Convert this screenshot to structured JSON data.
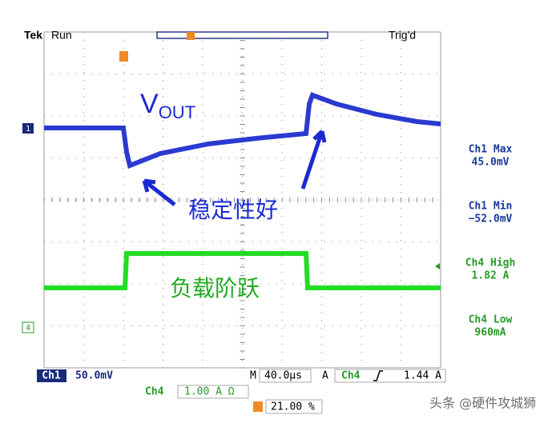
{
  "header": {
    "brand": "Tek",
    "status": "Run",
    "trigger_status": "Trig'd"
  },
  "channel_markers": {
    "ch1": "1",
    "ch4": "4"
  },
  "annotations": {
    "vout_main": "V",
    "vout_sub": "OUT",
    "stability": "稳定性好",
    "load_step": "负载阶跃"
  },
  "readouts": [
    {
      "label": "Ch1 Max",
      "value": "45.0mV"
    },
    {
      "label": "Ch1 Min",
      "value": "−52.0mV"
    },
    {
      "label": "Ch4 High",
      "value": "1.82 A"
    },
    {
      "label": "Ch4 Low",
      "value": "960mA"
    }
  ],
  "status_bar": {
    "ch1_label": "Ch1",
    "ch1_scale": "50.0mV",
    "time_label": "M",
    "time_scale": "40.0µs",
    "trigger_mode": "A",
    "trigger_source": "Ch4",
    "trigger_level": "1.44 A",
    "ch4_label": "Ch4",
    "ch4_scale": "1.00 A Ω",
    "trigger_position": "21.00 %"
  },
  "watermark": "头条 @硬件攻城狮"
}
